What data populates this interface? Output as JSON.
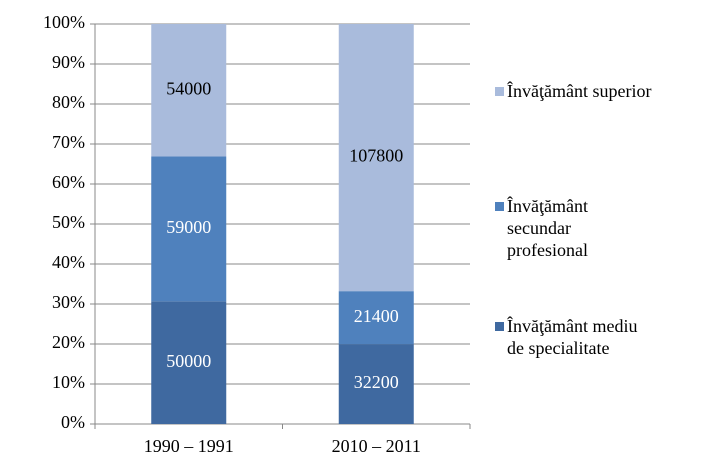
{
  "chart_data": {
    "type": "bar",
    "stacking": "percent",
    "categories": [
      "1990 – 1991",
      "2010 – 2011"
    ],
    "series": [
      {
        "name": "Învăţământ mediu de specialitate",
        "color": "#3f69a0",
        "values": [
          50000,
          32200
        ]
      },
      {
        "name": "Învăţământ secundar profesional",
        "color": "#4f81bd",
        "values": [
          59000,
          21400
        ]
      },
      {
        "name": "Învăţământ superior",
        "color": "#a9bbdc",
        "values": [
          54000,
          107800
        ]
      }
    ],
    "ylim": [
      0,
      100
    ],
    "yticks": [
      {
        "value": 0,
        "label": "0%"
      },
      {
        "value": 10,
        "label": "10%"
      },
      {
        "value": 20,
        "label": "20%"
      },
      {
        "value": 30,
        "label": "30%"
      },
      {
        "value": 40,
        "label": "40%"
      },
      {
        "value": 50,
        "label": "50%"
      },
      {
        "value": 60,
        "label": "60%"
      },
      {
        "value": 70,
        "label": "70%"
      },
      {
        "value": 80,
        "label": "80%"
      },
      {
        "value": 90,
        "label": "90%"
      },
      {
        "value": 100,
        "label": "100%"
      }
    ],
    "grid": true,
    "legend": "right"
  }
}
